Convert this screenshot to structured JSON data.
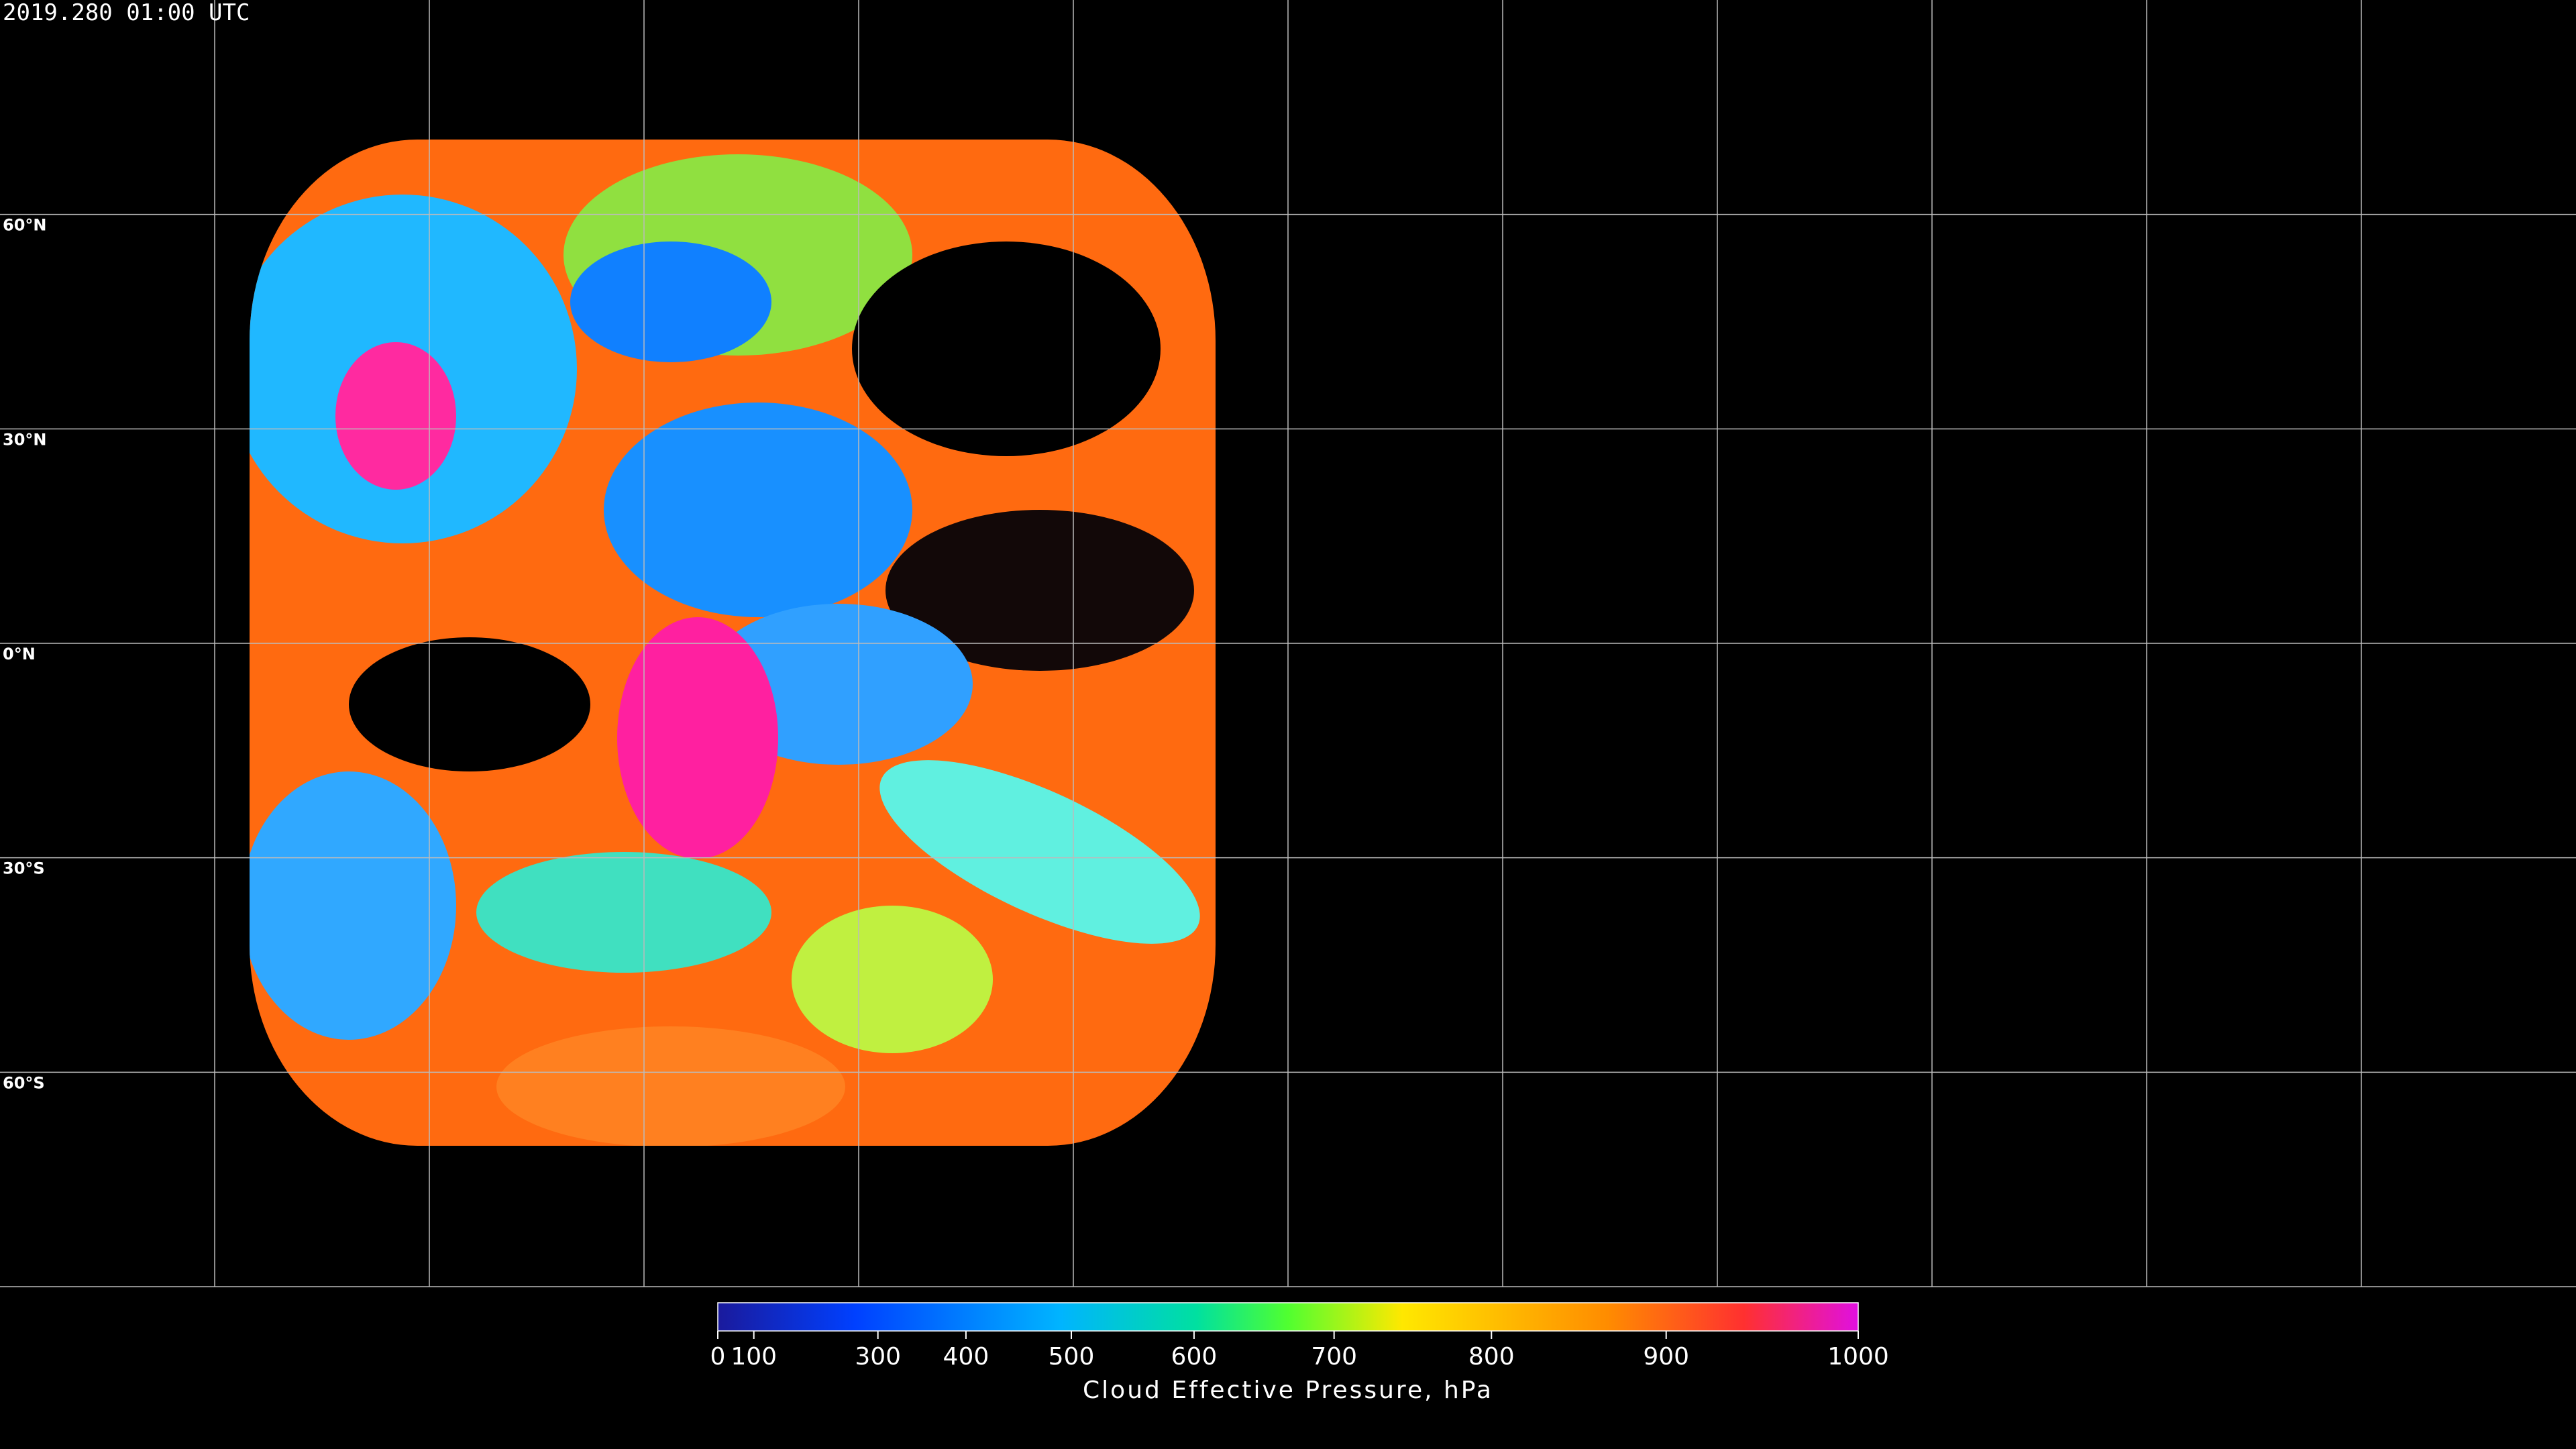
{
  "header": {
    "timestamp": "2019.280 01:00 UTC"
  },
  "map": {
    "latitude_labels": [
      "60°N",
      "30°N",
      "0°N",
      "30°S",
      "60°S"
    ]
  },
  "colorbar": {
    "label": "Cloud Effective Pressure, hPa",
    "range": [
      0,
      1000
    ],
    "ticks": [
      0,
      100,
      300,
      400,
      500,
      600,
      700,
      800,
      900,
      1000
    ]
  }
}
